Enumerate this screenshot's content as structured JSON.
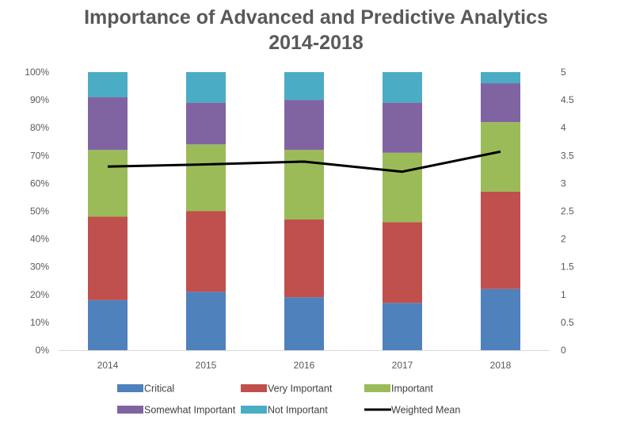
{
  "chart_data": {
    "type": "bar",
    "stacked": true,
    "title_lines": [
      "Importance of Advanced and Predictive Analytics",
      "2014-2018"
    ],
    "categories": [
      "2014",
      "2015",
      "2016",
      "2017",
      "2018"
    ],
    "series": [
      {
        "name": "Critical",
        "color": "#4F81BD",
        "values": [
          18,
          21,
          19,
          17,
          22
        ]
      },
      {
        "name": "Very Important",
        "color": "#C0504D",
        "values": [
          30,
          29,
          28,
          29,
          35
        ]
      },
      {
        "name": "Important",
        "color": "#9BBB59",
        "values": [
          24,
          24,
          25,
          25,
          25
        ]
      },
      {
        "name": "Somewhat Important",
        "color": "#8064A2",
        "values": [
          19,
          15,
          18,
          18,
          14
        ]
      },
      {
        "name": "Not Important",
        "color": "#4BACC6",
        "values": [
          9,
          11,
          10,
          11,
          4
        ]
      }
    ],
    "line_series": {
      "name": "Weighted Mean",
      "color": "#000000",
      "axis": "right",
      "values": [
        3.3,
        3.34,
        3.39,
        3.21,
        3.57
      ]
    },
    "y_left": {
      "min": 0,
      "max": 100,
      "step": 10,
      "tick_labels": [
        "0%",
        "10%",
        "20%",
        "30%",
        "40%",
        "50%",
        "60%",
        "70%",
        "80%",
        "90%",
        "100%"
      ]
    },
    "y_right": {
      "min": 0,
      "max": 5,
      "step": 0.5,
      "tick_labels": [
        "0",
        "0.5",
        "1",
        "1.5",
        "2",
        "2.5",
        "3",
        "3.5",
        "4",
        "4.5",
        "5"
      ]
    },
    "legend": {
      "position": "bottom",
      "items": [
        "Critical",
        "Very Important",
        "Important",
        "Somewhat Important",
        "Not Important",
        "Weighted Mean"
      ]
    },
    "grid": false
  }
}
